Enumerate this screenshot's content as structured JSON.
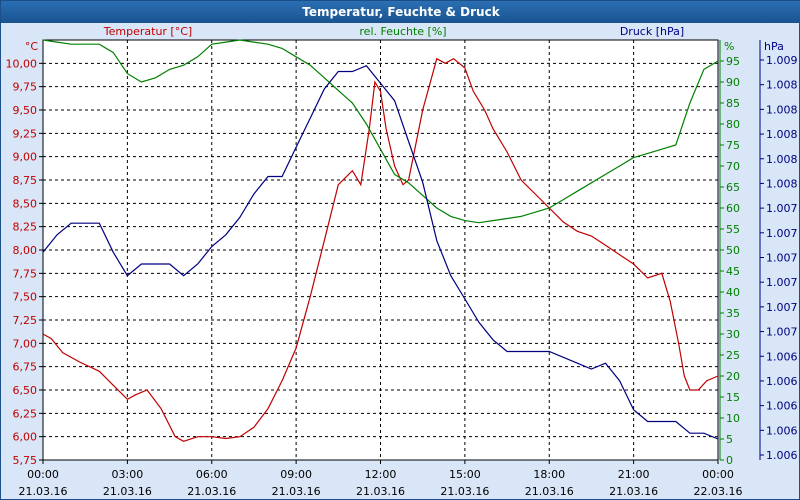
{
  "window": {
    "title": "Temperatur, Feuchte & Druck"
  },
  "chart_data": {
    "type": "line",
    "title": "Temperatur, Feuchte & Druck",
    "x_ticks": [
      {
        "time": "00:00",
        "date": "21.03.16"
      },
      {
        "time": "03:00",
        "date": "21.03.16"
      },
      {
        "time": "06:00",
        "date": "21.03.16"
      },
      {
        "time": "09:00",
        "date": "21.03.16"
      },
      {
        "time": "12:00",
        "date": "21.03.16"
      },
      {
        "time": "15:00",
        "date": "21.03.16"
      },
      {
        "time": "18:00",
        "date": "21.03.16"
      },
      {
        "time": "21:00",
        "date": "21.03.16"
      },
      {
        "time": "00:00",
        "date": "22.03.16"
      }
    ],
    "x_range_hours": [
      0,
      24
    ],
    "grid": true,
    "axes": {
      "temperature": {
        "title": "Temperatur [°C]",
        "unit": "°C",
        "color": "#c00000",
        "ylim": [
          5.75,
          10.25
        ],
        "ticks": [
          "5,75",
          "6,00",
          "6,25",
          "6,50",
          "6,75",
          "7,00",
          "7,25",
          "7,50",
          "7,75",
          "8,00",
          "8,25",
          "8,50",
          "8,75",
          "9,00",
          "9,25",
          "9,50",
          "9,75",
          "10,00"
        ]
      },
      "humidity": {
        "title": "rel. Feuchte [%]",
        "unit": "%",
        "color": "#008000",
        "ylim": [
          0,
          100
        ],
        "ticks": [
          "0",
          "5",
          "10",
          "15",
          "20",
          "25",
          "30",
          "35",
          "40",
          "45",
          "50",
          "55",
          "60",
          "65",
          "70",
          "75",
          "80",
          "85",
          "90",
          "95"
        ]
      },
      "pressure": {
        "title": "Druck [hPa]",
        "unit": "hPa",
        "color": "#000080",
        "ticks": [
          "1.006",
          "1.006",
          "1.006",
          "1.006",
          "1.006",
          "1.007",
          "1.007",
          "1.007",
          "1.007",
          "1.007",
          "1.007",
          "1.008",
          "1.008",
          "1.008",
          "1.008",
          "1.008",
          "1.009"
        ]
      }
    },
    "series": [
      {
        "name": "Temperatur [°C]",
        "axis": "temperature",
        "color": "#c00000",
        "x": [
          0,
          0.3,
          0.7,
          1.3,
          2,
          2.5,
          3,
          3.3,
          3.7,
          4.2,
          4.7,
          5,
          5.5,
          6,
          6.5,
          7,
          7.5,
          8,
          8.5,
          9,
          9.5,
          10,
          10.5,
          11,
          11.3,
          11.6,
          11.8,
          12,
          12.2,
          12.5,
          12.8,
          13,
          13.5,
          14,
          14.3,
          14.6,
          15,
          15.3,
          15.7,
          16,
          16.5,
          17,
          17.5,
          18,
          18.5,
          19,
          19.5,
          20,
          20.5,
          21,
          21.5,
          22,
          22.3,
          22.6,
          22.8,
          23,
          23.3,
          23.6,
          24
        ],
        "values": [
          7.1,
          7.05,
          6.9,
          6.8,
          6.7,
          6.55,
          6.4,
          6.45,
          6.5,
          6.3,
          6.0,
          5.95,
          6.0,
          6.0,
          5.98,
          6.0,
          6.1,
          6.3,
          6.6,
          6.95,
          7.5,
          8.1,
          8.7,
          8.85,
          8.7,
          9.3,
          9.8,
          9.7,
          9.3,
          8.9,
          8.7,
          8.75,
          9.5,
          10.05,
          10.0,
          10.05,
          9.95,
          9.7,
          9.5,
          9.3,
          9.05,
          8.75,
          8.6,
          8.45,
          8.3,
          8.2,
          8.15,
          8.05,
          7.95,
          7.85,
          7.7,
          7.75,
          7.45,
          7.0,
          6.65,
          6.5,
          6.5,
          6.6,
          6.65
        ]
      },
      {
        "name": "rel. Feuchte [%]",
        "axis": "humidity",
        "color": "#008000",
        "x": [
          0,
          0.5,
          1,
          1.5,
          2,
          2.5,
          3,
          3.5,
          4,
          4.5,
          5,
          5.5,
          6,
          6.5,
          7,
          7.5,
          8,
          8.5,
          9,
          9.5,
          10,
          10.5,
          11,
          11.5,
          12,
          12.5,
          13,
          13.5,
          14,
          14.5,
          15,
          15.5,
          16,
          16.5,
          17,
          17.5,
          18,
          18.5,
          19,
          19.5,
          20,
          20.5,
          21,
          21.5,
          22,
          22.5,
          23,
          23.5,
          24
        ],
        "values": [
          100,
          99.5,
          99,
          99,
          99,
          97,
          92,
          90,
          91,
          93,
          94,
          96,
          99,
          99.5,
          100,
          99.5,
          99,
          98,
          96,
          94,
          91,
          88,
          85,
          80,
          74,
          68,
          66,
          63,
          60,
          58,
          57,
          56.5,
          57,
          57.5,
          58,
          59,
          60,
          62,
          64,
          66,
          68,
          70,
          72,
          73,
          74,
          75,
          85,
          93,
          95
        ]
      },
      {
        "name": "Druck [hPa]",
        "axis": "pressure",
        "color": "#000080",
        "pressure_range": [
          1.00562,
          1.00922
        ],
        "x": [
          0,
          0.5,
          1,
          1.5,
          2,
          2.5,
          3,
          3.5,
          4,
          4.5,
          5,
          5.5,
          6,
          6.5,
          7,
          7.5,
          8,
          8.5,
          9,
          9.5,
          10,
          10.5,
          11,
          11.5,
          12,
          12.5,
          13,
          13.5,
          14,
          14.5,
          15,
          15.5,
          16,
          16.5,
          17,
          17.5,
          18,
          18.5,
          19,
          19.5,
          20,
          20.5,
          21,
          21.5,
          22,
          22.5,
          23,
          23.5,
          24
        ],
        "values": [
          1.0074,
          1.00755,
          1.00765,
          1.00765,
          1.00765,
          1.0074,
          1.0072,
          1.0073,
          1.0073,
          1.0073,
          1.0072,
          1.0073,
          1.00745,
          1.00755,
          1.0077,
          1.0079,
          1.00805,
          1.00805,
          1.0083,
          1.00855,
          1.0088,
          1.00895,
          1.00895,
          1.009,
          1.00885,
          1.0087,
          1.00835,
          1.008,
          1.0075,
          1.0072,
          1.007,
          1.0068,
          1.00665,
          1.00655,
          1.00655,
          1.00655,
          1.00655,
          1.0065,
          1.00645,
          1.0064,
          1.00645,
          1.0063,
          1.00605,
          1.00595,
          1.00595,
          1.00595,
          1.00585,
          1.00585,
          1.0058
        ]
      }
    ]
  }
}
